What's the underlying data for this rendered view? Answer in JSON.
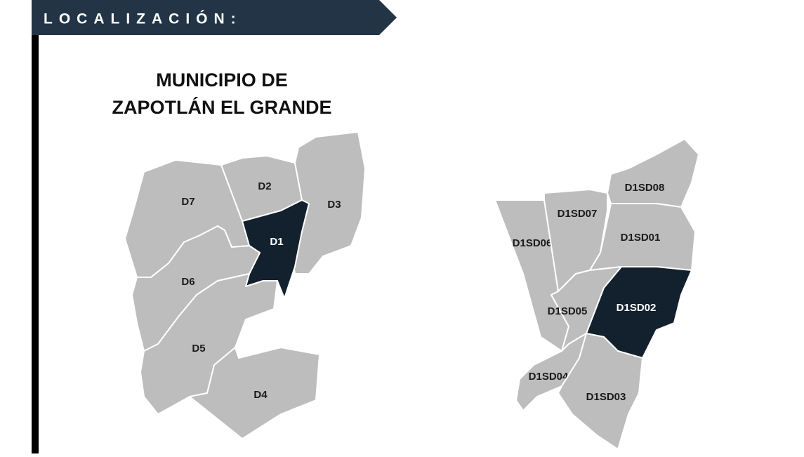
{
  "header": {
    "title": "LOCALIZACIÓN:"
  },
  "map_title": [
    "MUNICIPIO DE",
    "ZAPOTLÁN EL GRANDE"
  ],
  "fill_color": "#bdbdbd",
  "highlight_color": "#13212e",
  "maps": [
    {
      "regions": [
        {
          "label": "D7"
        },
        {
          "label": "D2"
        },
        {
          "label": "D3"
        },
        {
          "label": "D1",
          "highlighted": true
        },
        {
          "label": "D6"
        },
        {
          "label": "D5"
        },
        {
          "label": "D4"
        }
      ]
    },
    {
      "regions": [
        {
          "label": "D1SD06"
        },
        {
          "label": "D1SD07"
        },
        {
          "label": "D1SD08"
        },
        {
          "label": "D1SD01"
        },
        {
          "label": "D1SD05"
        },
        {
          "label": "D1SD02",
          "highlighted": true
        },
        {
          "label": "D1SD04"
        },
        {
          "label": "D1SD03"
        }
      ]
    }
  ]
}
